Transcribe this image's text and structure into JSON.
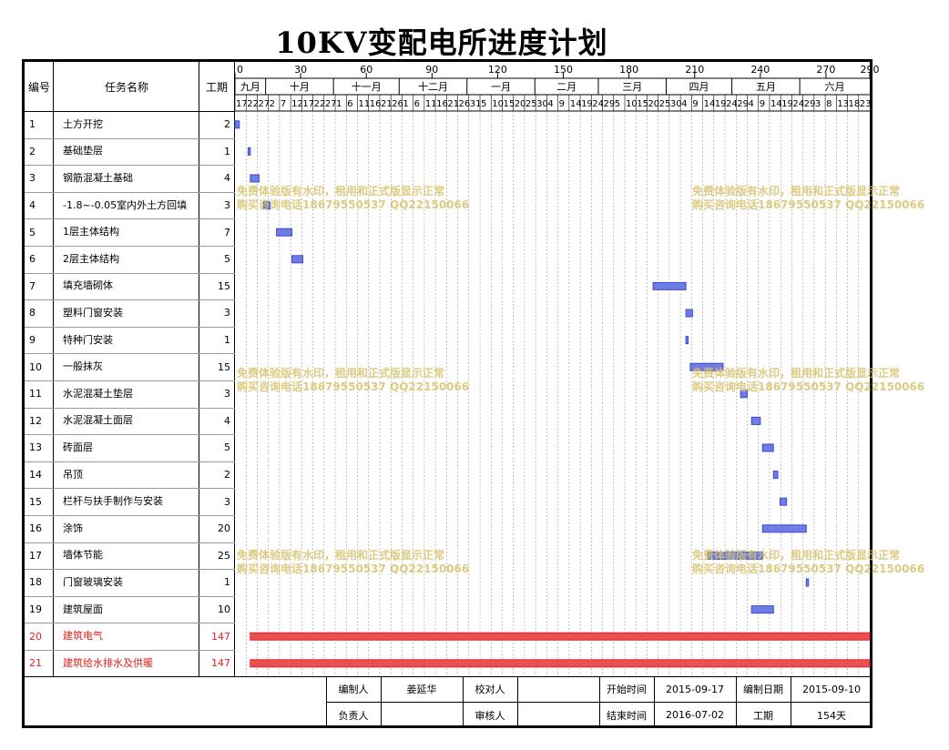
{
  "title": "10KV变配电所进度计划",
  "header": {
    "num": "编号",
    "name": "任务名称",
    "dur": "工期"
  },
  "scale": {
    "ticks": [
      0,
      30,
      60,
      90,
      120,
      150,
      180,
      210,
      240,
      270,
      290
    ],
    "total": 290
  },
  "months": [
    {
      "label": "九月",
      "start": 0,
      "end": 14
    },
    {
      "label": "十月",
      "start": 14,
      "end": 45
    },
    {
      "label": "十一月",
      "start": 45,
      "end": 75
    },
    {
      "label": "十二月",
      "start": 75,
      "end": 106
    },
    {
      "label": "一月",
      "start": 106,
      "end": 137
    },
    {
      "label": "二月",
      "start": 137,
      "end": 166
    },
    {
      "label": "三月",
      "start": 166,
      "end": 197
    },
    {
      "label": "四月",
      "start": 197,
      "end": 227
    },
    {
      "label": "五月",
      "start": 227,
      "end": 258
    },
    {
      "label": "六月",
      "start": 258,
      "end": 290
    }
  ],
  "days": [
    "17",
    "22",
    "27",
    "2",
    "7",
    "12",
    "17",
    "22",
    "27",
    "1",
    "6",
    "11",
    "16",
    "21",
    "26",
    "1",
    "6",
    "11",
    "16",
    "21",
    "26",
    "31",
    "5",
    "10",
    "15",
    "20",
    "25",
    "30",
    "4",
    "9",
    "14",
    "19",
    "24",
    "29",
    "5",
    "10",
    "15",
    "20",
    "25",
    "30",
    "4",
    "9",
    "14",
    "19",
    "24",
    "29",
    "4",
    "9",
    "14",
    "19",
    "24",
    "29",
    "3",
    "8",
    "13",
    "18",
    "23"
  ],
  "tasks": [
    {
      "num": "1",
      "name": "土方开挖",
      "dur": "2",
      "start": 0,
      "len": 2,
      "critical": false
    },
    {
      "num": "2",
      "name": "基础垫层",
      "dur": "1",
      "start": 6,
      "len": 1,
      "critical": false
    },
    {
      "num": "3",
      "name": "钢筋混凝土基础",
      "dur": "4",
      "start": 7,
      "len": 4,
      "critical": false
    },
    {
      "num": "4",
      "name": "-1.8~-0.05室内外土方回填",
      "dur": "3",
      "start": 13,
      "len": 3,
      "critical": false
    },
    {
      "num": "5",
      "name": "1层主体结构",
      "dur": "7",
      "start": 19,
      "len": 7,
      "critical": false
    },
    {
      "num": "6",
      "name": "2层主体结构",
      "dur": "5",
      "start": 26,
      "len": 5,
      "critical": false
    },
    {
      "num": "7",
      "name": "填充墙砌体",
      "dur": "15",
      "start": 191,
      "len": 15,
      "critical": false
    },
    {
      "num": "8",
      "name": "塑料门窗安装",
      "dur": "3",
      "start": 206,
      "len": 3,
      "critical": false
    },
    {
      "num": "9",
      "name": "特种门安装",
      "dur": "1",
      "start": 206,
      "len": 1,
      "critical": false
    },
    {
      "num": "10",
      "name": "一般抹灰",
      "dur": "15",
      "start": 208,
      "len": 15,
      "critical": false
    },
    {
      "num": "11",
      "name": "水泥混凝土垫层",
      "dur": "3",
      "start": 231,
      "len": 3,
      "critical": false
    },
    {
      "num": "12",
      "name": "水泥混凝土面层",
      "dur": "4",
      "start": 236,
      "len": 4,
      "critical": false
    },
    {
      "num": "13",
      "name": "砖面层",
      "dur": "5",
      "start": 241,
      "len": 5,
      "critical": false
    },
    {
      "num": "14",
      "name": "吊顶",
      "dur": "2",
      "start": 246,
      "len": 2,
      "critical": false
    },
    {
      "num": "15",
      "name": "栏杆与扶手制作与安装",
      "dur": "3",
      "start": 249,
      "len": 3,
      "critical": false
    },
    {
      "num": "16",
      "name": "涂饰",
      "dur": "20",
      "start": 241,
      "len": 20,
      "critical": false
    },
    {
      "num": "17",
      "name": "墙体节能",
      "dur": "25",
      "start": 216,
      "len": 25,
      "critical": false
    },
    {
      "num": "18",
      "name": "门窗玻璃安装",
      "dur": "1",
      "start": 261,
      "len": 1,
      "critical": false
    },
    {
      "num": "19",
      "name": "建筑屋面",
      "dur": "10",
      "start": 236,
      "len": 10,
      "critical": false
    },
    {
      "num": "20",
      "name": "建筑电气",
      "dur": "147",
      "start": 7,
      "len": 283,
      "critical": true
    },
    {
      "num": "21",
      "name": "建筑给水排水及供暖",
      "dur": "147",
      "start": 7,
      "len": 283,
      "critical": true
    }
  ],
  "footer": {
    "compiler_label": "编制人",
    "compiler": "姜延华",
    "checker_label": "校对人",
    "checker": "",
    "start_label": "开始时间",
    "start": "2015-09-17",
    "date_label": "编制日期",
    "date": "2015-09-10",
    "owner_label": "负责人",
    "owner": "",
    "reviewer_label": "审核人",
    "reviewer": "",
    "end_label": "结束时间",
    "end": "2016-07-02",
    "period_label": "工期",
    "period": "154天"
  },
  "watermark": {
    "line1": "免费体验版有水印，租用和正式版显示正常",
    "line2": "购买咨询电话18679550537 QQ22150066"
  },
  "colors": {
    "bar": "#3a49d8",
    "bar_fill": "#6f7de3",
    "critical": "#e02020",
    "critical_fill": "#ea5050"
  }
}
